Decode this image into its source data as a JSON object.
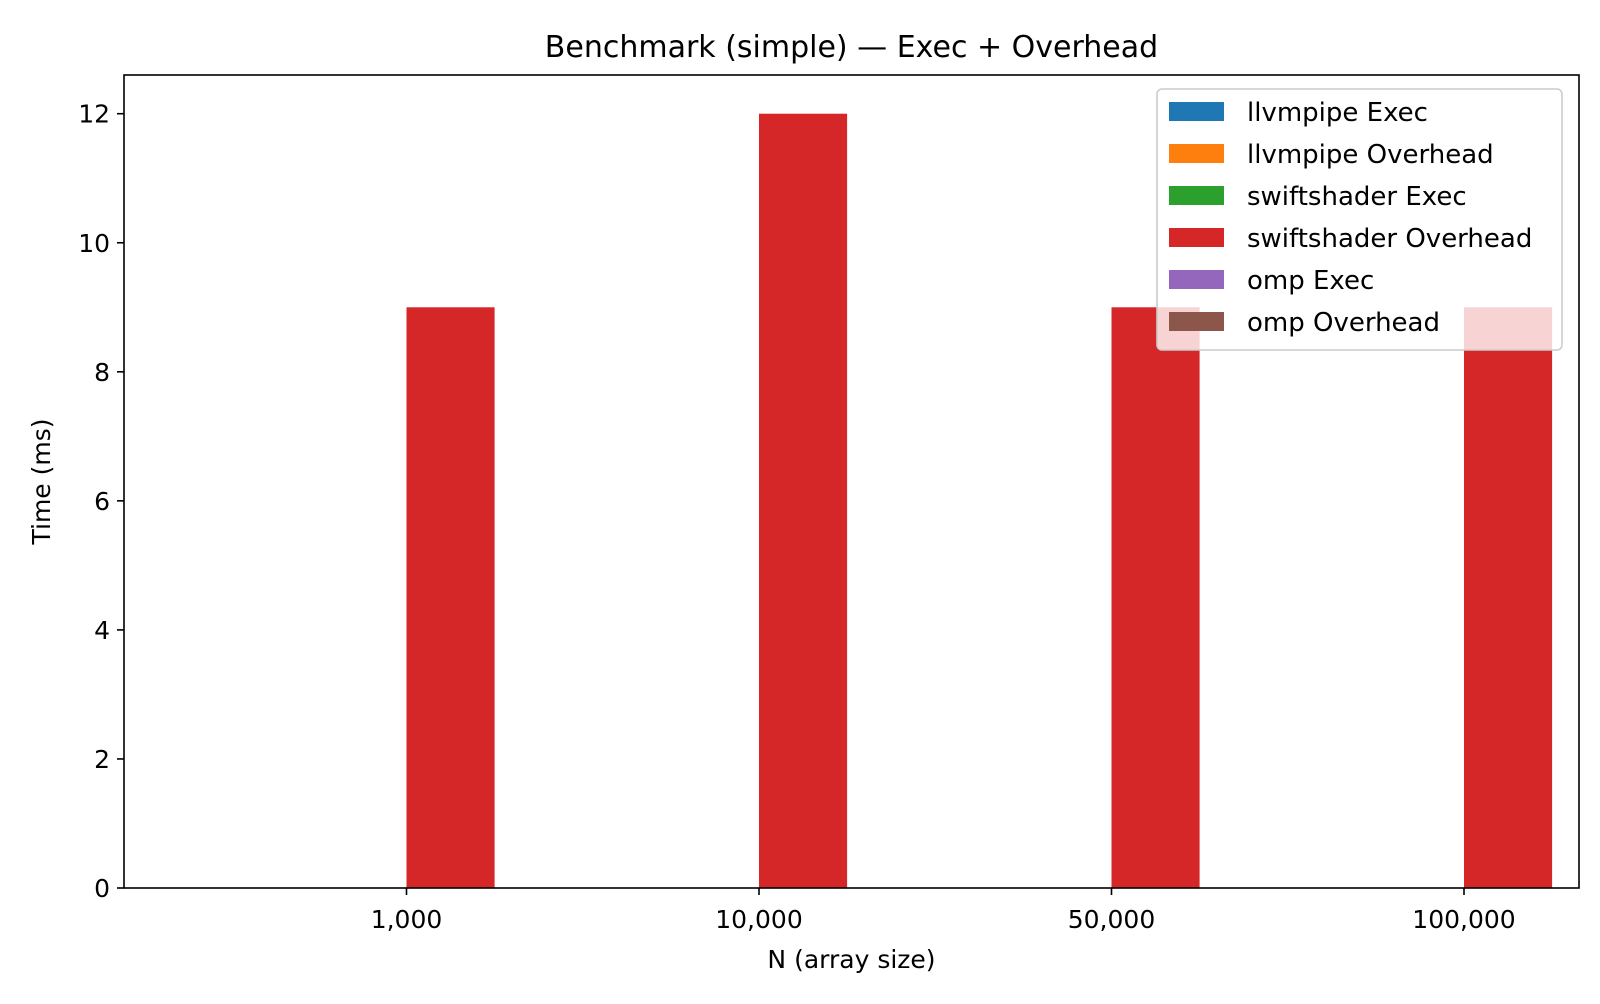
{
  "chart_data": {
    "type": "bar",
    "title": "Benchmark (simple) — Exec + Overhead",
    "xlabel": "N (array size)",
    "ylabel": "Time (ms)",
    "categories": [
      "1,000",
      "10,000",
      "50,000",
      "100,000"
    ],
    "ylim": [
      0,
      12.6
    ],
    "yticks": [
      0,
      2,
      4,
      6,
      8,
      10,
      12
    ],
    "grid": false,
    "legend_position": "top-right",
    "series": [
      {
        "name": "llvmpipe Exec",
        "color": "#1f77b4",
        "values": [
          0,
          0,
          0,
          0
        ]
      },
      {
        "name": "llvmpipe Overhead",
        "color": "#ff7f0e",
        "values": [
          0,
          0,
          0,
          0
        ]
      },
      {
        "name": "swiftshader Exec",
        "color": "#2ca02c",
        "values": [
          0,
          0,
          0,
          0
        ]
      },
      {
        "name": "swiftshader Overhead",
        "color": "#d62728",
        "values": [
          9,
          12,
          9,
          9
        ]
      },
      {
        "name": "omp Exec",
        "color": "#9467bd",
        "values": [
          0,
          0,
          0,
          0
        ]
      },
      {
        "name": "omp Overhead",
        "color": "#8c564b",
        "values": [
          0,
          0,
          0,
          0
        ]
      }
    ]
  }
}
